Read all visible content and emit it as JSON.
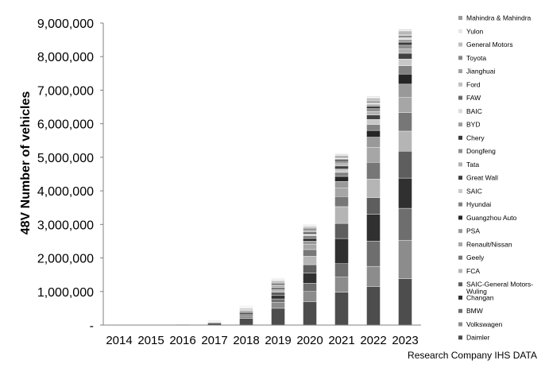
{
  "source": "Research Company IHS DATA",
  "chart_data": {
    "type": "bar",
    "stacked": true,
    "title": "",
    "xlabel": "",
    "ylabel": "48V  Number of vehicles",
    "ylim": [
      0,
      9000000
    ],
    "yticks": [
      0,
      1000000,
      2000000,
      3000000,
      4000000,
      5000000,
      6000000,
      7000000,
      8000000,
      9000000
    ],
    "ytick_labels": [
      "-",
      "1,000,000",
      "2,000,000",
      "3,000,000",
      "4,000,000",
      "5,000,000",
      "6,000,000",
      "7,000,000",
      "8,000,000",
      "9,000,000"
    ],
    "grid": false,
    "legend_position": "right",
    "categories": [
      "2014",
      "2015",
      "2016",
      "2017",
      "2018",
      "2019",
      "2020",
      "2021",
      "2022",
      "2023"
    ],
    "series": [
      {
        "name": "Daimler",
        "color": "#4d4d4d",
        "values": [
          0,
          3000,
          15000,
          60000,
          200000,
          500000,
          700000,
          980000,
          1150000,
          1380000
        ]
      },
      {
        "name": "Volkswagen",
        "color": "#8c8c8c",
        "values": [
          0,
          0,
          3000,
          20000,
          80000,
          180000,
          300000,
          450000,
          600000,
          1150000
        ]
      },
      {
        "name": "BMW",
        "color": "#6e6e6e",
        "values": [
          0,
          0,
          2000,
          15000,
          50000,
          100000,
          250000,
          400000,
          750000,
          950000
        ]
      },
      {
        "name": "Changan",
        "color": "#303030",
        "values": [
          0,
          0,
          0,
          10000,
          40000,
          100000,
          300000,
          750000,
          800000,
          900000
        ]
      },
      {
        "name": "SAIC-General Motors-Wuling",
        "color": "#5e5e5e",
        "values": [
          0,
          0,
          0,
          5000,
          30000,
          100000,
          250000,
          450000,
          500000,
          800000
        ]
      },
      {
        "name": "FCA",
        "color": "#b5b5b5",
        "values": [
          0,
          0,
          0,
          5000,
          30000,
          70000,
          250000,
          500000,
          550000,
          600000
        ]
      },
      {
        "name": "Geely",
        "color": "#777777",
        "values": [
          0,
          0,
          0,
          3000,
          20000,
          70000,
          200000,
          300000,
          500000,
          550000
        ]
      },
      {
        "name": "Renault/Nissan",
        "color": "#a6a6a6",
        "values": [
          0,
          0,
          0,
          3000,
          20000,
          50000,
          150000,
          250000,
          450000,
          450000
        ]
      },
      {
        "name": "PSA",
        "color": "#999999",
        "values": [
          0,
          0,
          0,
          2000,
          15000,
          40000,
          100000,
          200000,
          300000,
          400000
        ]
      },
      {
        "name": "Guangzhou Auto",
        "color": "#262626",
        "values": [
          0,
          0,
          0,
          2000,
          15000,
          30000,
          80000,
          150000,
          200000,
          300000
        ]
      },
      {
        "name": "Hyundai",
        "color": "#828282",
        "values": [
          0,
          0,
          0,
          2000,
          10000,
          30000,
          80000,
          120000,
          180000,
          250000
        ]
      },
      {
        "name": "SAIC",
        "color": "#c8c8c8",
        "values": [
          0,
          0,
          0,
          2000,
          10000,
          20000,
          60000,
          100000,
          150000,
          200000
        ]
      },
      {
        "name": "Great Wall",
        "color": "#414141",
        "values": [
          0,
          0,
          0,
          1000,
          8000,
          20000,
          50000,
          90000,
          130000,
          170000
        ]
      },
      {
        "name": "Tata",
        "color": "#b0b0b0",
        "values": [
          0,
          0,
          0,
          1000,
          6000,
          15000,
          40000,
          70000,
          100000,
          130000
        ]
      },
      {
        "name": "Dongfeng",
        "color": "#8f8f8f",
        "values": [
          0,
          0,
          0,
          1000,
          6000,
          15000,
          40000,
          60000,
          90000,
          110000
        ]
      },
      {
        "name": "Chery",
        "color": "#3a3a3a",
        "values": [
          0,
          0,
          0,
          1000,
          5000,
          12000,
          30000,
          50000,
          70000,
          90000
        ]
      },
      {
        "name": "BYD",
        "color": "#9e9e9e",
        "values": [
          0,
          0,
          0,
          1000,
          5000,
          10000,
          25000,
          40000,
          60000,
          80000
        ]
      },
      {
        "name": "BAIC",
        "color": "#dadada",
        "values": [
          0,
          0,
          0,
          1000,
          4000,
          8000,
          20000,
          35000,
          50000,
          60000
        ]
      },
      {
        "name": "FAW",
        "color": "#6a6a6a",
        "values": [
          0,
          0,
          0,
          1000,
          4000,
          8000,
          20000,
          30000,
          40000,
          50000
        ]
      },
      {
        "name": "Ford",
        "color": "#c0c0c0",
        "values": [
          0,
          0,
          0,
          0,
          3000,
          6000,
          15000,
          25000,
          35000,
          45000
        ]
      },
      {
        "name": "Jianghuai",
        "color": "#a0a0a0",
        "values": [
          0,
          0,
          0,
          0,
          3000,
          5000,
          12000,
          20000,
          30000,
          40000
        ]
      },
      {
        "name": "Toyota",
        "color": "#868686",
        "values": [
          0,
          0,
          0,
          0,
          2000,
          5000,
          10000,
          15000,
          25000,
          35000
        ]
      },
      {
        "name": "General Motors",
        "color": "#bdbdbd",
        "values": [
          0,
          0,
          0,
          0,
          2000,
          4000,
          10000,
          15000,
          20000,
          30000
        ]
      },
      {
        "name": "Yulon",
        "color": "#e6e6e6",
        "values": [
          0,
          0,
          0,
          0,
          1000,
          3000,
          8000,
          10000,
          15000,
          20000
        ]
      },
      {
        "name": "Mahindra & Mahindra",
        "color": "#999999",
        "values": [
          0,
          0,
          0,
          0,
          1000,
          3000,
          5000,
          10000,
          15000,
          20000
        ]
      }
    ]
  }
}
